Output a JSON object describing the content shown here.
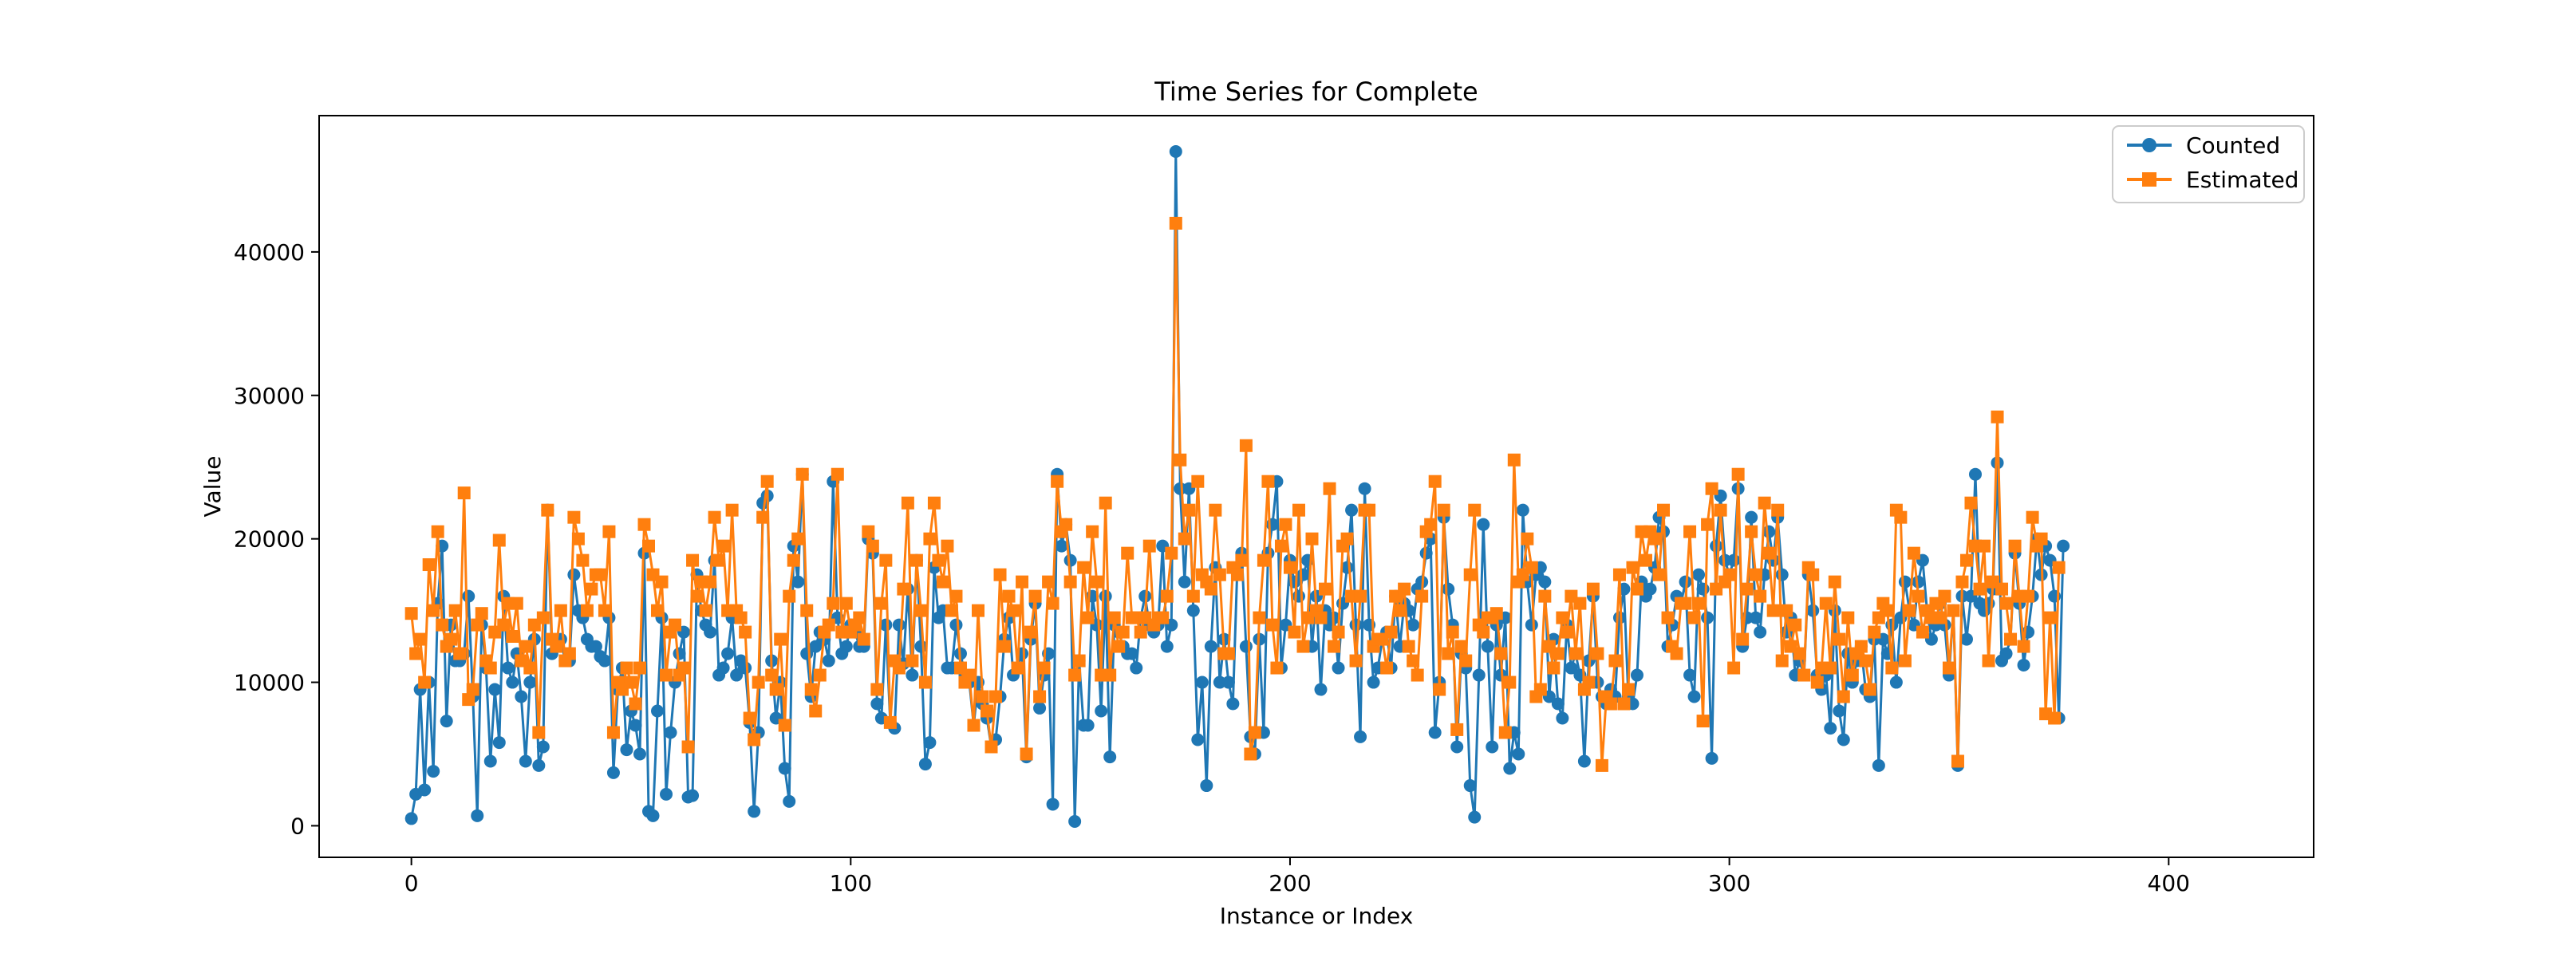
{
  "colors": {
    "counted": "#1f77b4",
    "estimated": "#ff7f0e",
    "axis": "#000000"
  },
  "chart_data": {
    "type": "line",
    "title": "Time Series for Complete",
    "xlabel": "Instance or Index",
    "ylabel": "Value",
    "xlim": [
      -21,
      433
    ],
    "ylim": [
      -2200,
      49500
    ],
    "xticks": [
      0,
      100,
      200,
      300,
      400
    ],
    "yticks": [
      0,
      10000,
      20000,
      30000,
      40000
    ],
    "grid": false,
    "legend_position": "top-right",
    "x_start": 0,
    "x_step": 1,
    "series": [
      {
        "name": "Counted",
        "marker": "circle",
        "values": [
          500,
          2200,
          9500,
          2500,
          10000,
          3800,
          15500,
          19500,
          7300,
          14000,
          11500,
          11500,
          12000,
          16000,
          9000,
          700,
          14000,
          11000,
          4500,
          9500,
          5800,
          16000,
          11000,
          10000,
          12000,
          9000,
          4500,
          10000,
          13000,
          4200,
          5500,
          22000,
          12000,
          12500,
          13000,
          11500,
          11500,
          17500,
          15000,
          14500,
          13000,
          12500,
          12500,
          11800,
          11500,
          14500,
          3700,
          9500,
          11000,
          5300,
          8000,
          7000,
          5000,
          19000,
          1000,
          700,
          8000,
          14500,
          2200,
          6500,
          10000,
          12000,
          13500,
          2000,
          2100,
          17500,
          15000,
          14000,
          13500,
          18500,
          10500,
          11000,
          12000,
          14500,
          10500,
          11500,
          11000,
          7200,
          1000,
          6500,
          22500,
          23000,
          11500,
          7500,
          10000,
          4000,
          1700,
          19500,
          17000,
          24500,
          12000,
          9000,
          12500,
          13500,
          13000,
          11500,
          24000,
          14500,
          12000,
          12500,
          14000,
          13500,
          12500,
          12500,
          20000,
          19000,
          8500,
          7500,
          14000,
          7200,
          6800,
          14000,
          11300,
          16500,
          10500,
          18500,
          12500,
          4300,
          5800,
          18000,
          14500,
          15000,
          11000,
          11000,
          14000,
          12000,
          10500,
          10000,
          7000,
          10000,
          8500,
          7500,
          5500,
          6000,
          9000,
          13000,
          14500,
          10500,
          11000,
          12000,
          4800,
          13000,
          15500,
          8200,
          10500,
          12000,
          1500,
          24500,
          19500,
          21000,
          18500,
          300,
          11500,
          7000,
          7000,
          16000,
          14000,
          8000,
          16000,
          4800,
          14000,
          13500,
          12500,
          12000,
          12000,
          11000,
          14500,
          16000,
          14000,
          13500,
          14000,
          19500,
          12500,
          14000,
          47000,
          23500,
          17000,
          23500,
          15000,
          6000,
          10000,
          2800,
          12500,
          18000,
          10000,
          13000,
          10000,
          8500,
          18000,
          19000,
          12500,
          6200,
          5000,
          13000,
          6500,
          19000,
          21000,
          24000,
          11000,
          14000,
          18500,
          17000,
          16000,
          17500,
          18500,
          12500,
          16000,
          9500,
          15000,
          14000,
          14500,
          11000,
          15500,
          18000,
          22000,
          14000,
          6200,
          23500,
          14000,
          10000,
          11000,
          13000,
          13500,
          11000,
          16000,
          12500,
          15500,
          15000,
          14000,
          16500,
          17000,
          19000,
          20000,
          6500,
          10000,
          21500,
          16500,
          14000,
          5500,
          12000,
          11000,
          2800,
          600,
          10500,
          21000,
          12500,
          5500,
          14000,
          10500,
          14500,
          4000,
          6500,
          5000,
          22000,
          17000,
          14000,
          17500,
          18000,
          17000,
          9000,
          13000,
          8500,
          7500,
          14000,
          11000,
          12000,
          10500,
          4500,
          11500,
          16000,
          10000,
          9000,
          8500,
          9500,
          9000,
          14500,
          16500,
          9000,
          8500,
          10500,
          17000,
          16000,
          16500,
          18000,
          21500,
          20500,
          12500,
          14000,
          16000,
          15500,
          17000,
          10500,
          9000,
          17500,
          16500,
          14500,
          4700,
          19500,
          23000,
          18500,
          17500,
          18500,
          23500,
          12500,
          14500,
          21500,
          14500,
          13500,
          17500,
          20500,
          18500,
          21500,
          17500,
          13500,
          14500,
          10500,
          11500,
          10500,
          17500,
          15000,
          10500,
          9500,
          10500,
          6800,
          15000,
          8000,
          6000,
          12000,
          10000,
          11500,
          12500,
          9500,
          9000,
          13000,
          4200,
          13000,
          12000,
          14000,
          10000,
          14500,
          17000,
          15000,
          14000,
          17000,
          18500,
          15000,
          13000,
          14000,
          15500,
          14000,
          10500,
          15000,
          4200,
          16000,
          13000,
          16000,
          24500,
          15500,
          15000,
          15500,
          16500,
          25300,
          11500,
          12000,
          13000,
          19000,
          15500,
          11200,
          13500,
          16000,
          20000,
          17500,
          19500,
          18500,
          16000,
          7500,
          19500
        ]
      },
      {
        "name": "Estimated",
        "marker": "square",
        "values": [
          14800,
          12000,
          13000,
          10000,
          18200,
          15000,
          20500,
          14000,
          12500,
          13000,
          15000,
          12000,
          23200,
          8800,
          9500,
          14000,
          14800,
          11500,
          11000,
          13500,
          19900,
          14000,
          15500,
          13200,
          15500,
          11500,
          12500,
          11000,
          14000,
          6500,
          14500,
          22000,
          13000,
          12500,
          15000,
          11500,
          12000,
          21500,
          20000,
          18500,
          15000,
          16500,
          17500,
          17500,
          15000,
          20500,
          6500,
          10000,
          9500,
          11000,
          10000,
          8500,
          11000,
          21000,
          19500,
          17500,
          15000,
          17000,
          10500,
          13500,
          14000,
          10500,
          11000,
          5500,
          18500,
          16000,
          17000,
          15000,
          17000,
          21500,
          18500,
          19500,
          15000,
          22000,
          15000,
          14500,
          13500,
          7500,
          6000,
          10000,
          21500,
          24000,
          10500,
          9500,
          13000,
          7000,
          16000,
          18500,
          20000,
          24500,
          15000,
          9500,
          8000,
          10500,
          13500,
          14000,
          15500,
          24500,
          13500,
          15500,
          13500,
          14000,
          14500,
          13000,
          20500,
          19500,
          9500,
          15500,
          18500,
          7200,
          11500,
          11000,
          16500,
          22500,
          11500,
          18500,
          15000,
          10000,
          20000,
          22500,
          18500,
          17000,
          19500,
          15000,
          16000,
          11000,
          10000,
          10500,
          7000,
          15000,
          9000,
          8000,
          5500,
          9000,
          17500,
          12500,
          16000,
          15000,
          11000,
          17000,
          5000,
          13500,
          16000,
          9000,
          11000,
          17000,
          15500,
          24000,
          20500,
          21000,
          17000,
          10500,
          11500,
          18000,
          14500,
          20500,
          17000,
          10500,
          22500,
          10500,
          14500,
          12500,
          13500,
          19000,
          14500,
          14500,
          13500,
          14500,
          19500,
          14000,
          14500,
          14500,
          16000,
          19000,
          42000,
          25500,
          20000,
          22000,
          16000,
          24000,
          17500,
          17000,
          16500,
          22000,
          17500,
          12000,
          12000,
          18000,
          17500,
          18500,
          26500,
          5000,
          6500,
          14500,
          18500,
          24000,
          14000,
          11000,
          19500,
          21000,
          18000,
          13500,
          22000,
          12500,
          14500,
          20000,
          15000,
          14500,
          16500,
          23500,
          12500,
          13500,
          19500,
          20000,
          16000,
          11500,
          16000,
          22000,
          22000,
          12500,
          13000,
          13000,
          11000,
          13500,
          16000,
          15000,
          16500,
          12500,
          11500,
          10500,
          16000,
          20500,
          21000,
          24000,
          9500,
          22000,
          12000,
          13500,
          6700,
          12500,
          11500,
          17500,
          22000,
          14000,
          13500,
          14500,
          14500,
          14800,
          12000,
          6500,
          10000,
          25500,
          17000,
          17500,
          20000,
          18000,
          9000,
          9500,
          16000,
          12500,
          11000,
          12000,
          14500,
          13500,
          16000,
          12000,
          15500,
          9500,
          10000,
          16500,
          12000,
          4200,
          9000,
          8500,
          11500,
          17500,
          8500,
          9500,
          18000,
          16500,
          20500,
          18500,
          20500,
          20000,
          17500,
          22000,
          14500,
          12500,
          12000,
          15500,
          15500,
          20500,
          14500,
          15500,
          7300,
          21000,
          23500,
          16500,
          22000,
          17000,
          17500,
          11000,
          24500,
          13000,
          16500,
          20500,
          17500,
          16000,
          22500,
          19000,
          15000,
          22000,
          11500,
          15000,
          12500,
          14000,
          12000,
          10500,
          18000,
          17500,
          10000,
          11000,
          15500,
          11000,
          17000,
          13000,
          9000,
          14500,
          10500,
          12000,
          12500,
          11500,
          9500,
          13500,
          14500,
          15500,
          15000,
          11000,
          22000,
          21500,
          11500,
          15000,
          19000,
          16000,
          13500,
          15000,
          14500,
          15500,
          14500,
          16000,
          11000,
          15000,
          4500,
          17000,
          18500,
          22500,
          19500,
          16500,
          19500,
          11500,
          17000,
          28500,
          16500,
          15500,
          13000,
          19500,
          16000,
          12500,
          16000,
          21500,
          19500,
          20000,
          7800,
          14500,
          7500,
          18000
        ]
      }
    ]
  }
}
